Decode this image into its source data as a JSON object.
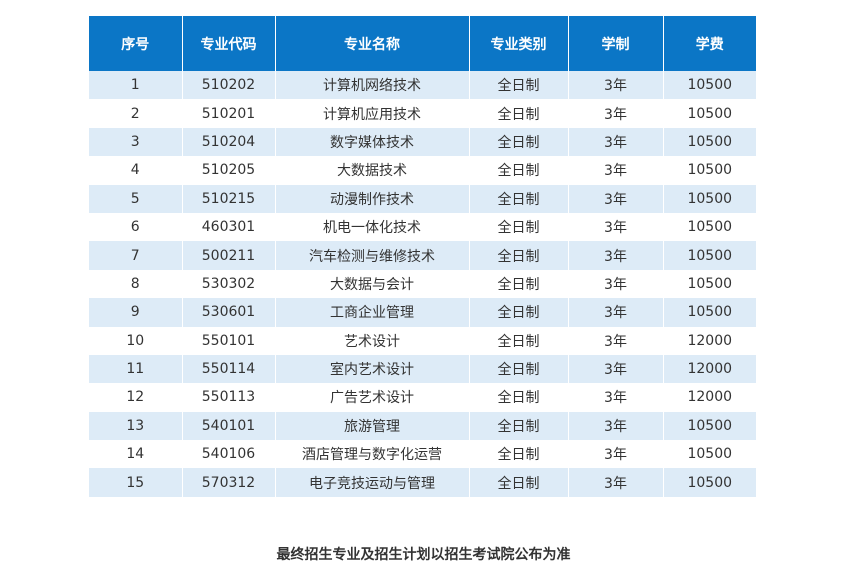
{
  "table": {
    "headers": [
      "序号",
      "专业代码",
      "专业名称",
      "专业类别",
      "学制",
      "学费"
    ],
    "rows": [
      [
        "1",
        "510202",
        "计算机网络技术",
        "全日制",
        "3年",
        "10500"
      ],
      [
        "2",
        "510201",
        "计算机应用技术",
        "全日制",
        "3年",
        "10500"
      ],
      [
        "3",
        "510204",
        "数字媒体技术",
        "全日制",
        "3年",
        "10500"
      ],
      [
        "4",
        "510205",
        "大数据技术",
        "全日制",
        "3年",
        "10500"
      ],
      [
        "5",
        "510215",
        "动漫制作技术",
        "全日制",
        "3年",
        "10500"
      ],
      [
        "6",
        "460301",
        "机电一体化技术",
        "全日制",
        "3年",
        "10500"
      ],
      [
        "7",
        "500211",
        "汽车检测与维修技术",
        "全日制",
        "3年",
        "10500"
      ],
      [
        "8",
        "530302",
        "大数据与会计",
        "全日制",
        "3年",
        "10500"
      ],
      [
        "9",
        "530601",
        "工商企业管理",
        "全日制",
        "3年",
        "10500"
      ],
      [
        "10",
        "550101",
        "艺术设计",
        "全日制",
        "3年",
        "12000"
      ],
      [
        "11",
        "550114",
        "室内艺术设计",
        "全日制",
        "3年",
        "12000"
      ],
      [
        "12",
        "550113",
        "广告艺术设计",
        "全日制",
        "3年",
        "12000"
      ],
      [
        "13",
        "540101",
        "旅游管理",
        "全日制",
        "3年",
        "10500"
      ],
      [
        "14",
        "540106",
        "酒店管理与数字化运营",
        "全日制",
        "3年",
        "10500"
      ],
      [
        "15",
        "570312",
        "电子竞技运动与管理",
        "全日制",
        "3年",
        "10500"
      ]
    ]
  },
  "footer": {
    "note": "最终招生专业及招生计划以招生考试院公布为准"
  },
  "colors": {
    "header_bg": "#0b76c6",
    "stripe_bg": "#ddebf7",
    "text": "#333333"
  }
}
